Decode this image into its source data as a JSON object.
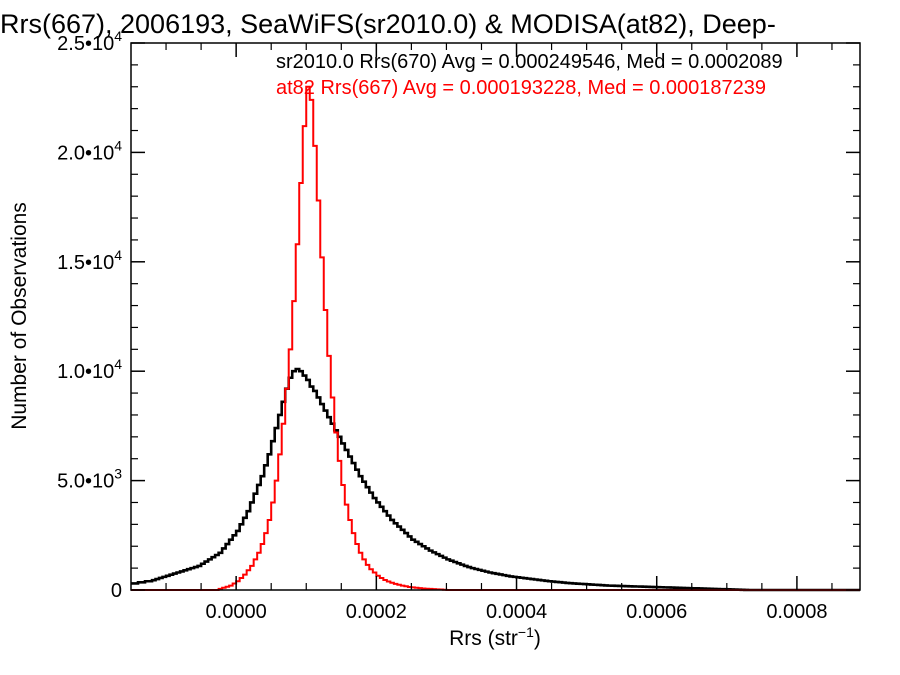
{
  "chart_data": {
    "type": "line",
    "title": "Rrs(667), 2006193, SeaWiFS(sr2010.0) & MODISA(at82), Deep-",
    "xlabel": "Rrs (str",
    "xlabel_sup": "−1",
    "xlabel_end": ")",
    "ylabel": "Number of Observations",
    "xlim": [
      -0.00015,
      0.00089
    ],
    "ylim": [
      0,
      25000
    ],
    "xticks": [
      0.0,
      0.0002,
      0.0004,
      0.0006,
      0.0008
    ],
    "xtick_labels": [
      "0.0000",
      "0.0002",
      "0.0004",
      "0.0006",
      "0.0008"
    ],
    "yticks": [
      0,
      5000,
      10000,
      15000,
      20000,
      25000
    ],
    "ytick_labels": [
      {
        "base": "0",
        "exp": ""
      },
      {
        "base": "5.0•10",
        "exp": "3"
      },
      {
        "base": "1.0•10",
        "exp": "4"
      },
      {
        "base": "1.5•10",
        "exp": "4"
      },
      {
        "base": "2.0•10",
        "exp": "4"
      },
      {
        "base": "2.5•10",
        "exp": "4"
      }
    ],
    "bin_width": 5e-06,
    "grid": false,
    "series": [
      {
        "name": "sr2010.0 Rrs(670)",
        "annotation": "sr2010.0 Rrs(670) Avg = 0.000249546, Med = 0.0002089",
        "color": "#000000",
        "x_start": -0.00015,
        "values": [
          300,
          300,
          350,
          350,
          400,
          400,
          450,
          500,
          550,
          600,
          650,
          700,
          750,
          800,
          850,
          900,
          950,
          1000,
          1050,
          1100,
          1200,
          1300,
          1400,
          1500,
          1600,
          1700,
          1900,
          2100,
          2300,
          2500,
          2700,
          3000,
          3300,
          3600,
          4000,
          4400,
          4800,
          5200,
          5700,
          6200,
          6800,
          7400,
          8000,
          8600,
          9200,
          9700,
          10000,
          10100,
          10000,
          9800,
          9600,
          9300,
          9100,
          8800,
          8500,
          8200,
          7900,
          7600,
          7300,
          7000,
          6700,
          6400,
          6100,
          5800,
          5500,
          5200,
          4950,
          4700,
          4450,
          4200,
          4000,
          3800,
          3600,
          3400,
          3200,
          3050,
          2900,
          2750,
          2600,
          2450,
          2300,
          2200,
          2100,
          2000,
          1900,
          1800,
          1720,
          1640,
          1560,
          1480,
          1400,
          1340,
          1280,
          1220,
          1160,
          1100,
          1050,
          1000,
          960,
          920,
          880,
          840,
          800,
          770,
          740,
          710,
          680,
          650,
          620,
          600,
          580,
          560,
          540,
          520,
          500,
          480,
          460,
          440,
          420,
          400,
          385,
          370,
          355,
          340,
          325,
          310,
          300,
          290,
          280,
          270,
          260,
          250,
          240,
          230,
          220,
          210,
          200,
          195,
          190,
          185,
          180,
          175,
          170,
          165,
          160,
          155,
          150,
          145,
          140,
          135,
          130,
          125,
          120,
          115,
          110,
          105,
          100,
          95,
          90,
          85,
          80,
          75,
          70,
          65,
          60,
          55,
          50,
          45,
          40,
          35,
          30,
          25,
          20,
          15,
          10,
          5,
          0,
          0,
          0,
          0,
          0,
          0,
          0,
          0,
          0,
          0,
          0,
          0,
          0,
          0,
          0,
          0,
          0,
          0,
          0,
          0,
          0,
          0,
          0,
          0,
          0,
          0,
          0,
          0,
          0,
          0,
          0,
          0,
          0,
          0,
          0,
          0,
          0,
          0
        ]
      },
      {
        "name": "at82 Rrs(667)",
        "annotation": "at82 Rrs(667) Avg = 0.000193228, Med = 0.000187239",
        "color": "#ff0000",
        "x_start": -0.00015,
        "values": [
          0,
          0,
          0,
          0,
          0,
          0,
          0,
          0,
          0,
          0,
          0,
          0,
          0,
          0,
          0,
          0,
          0,
          0,
          0,
          0,
          0,
          0,
          0,
          0,
          0,
          50,
          100,
          150,
          200,
          300,
          400,
          550,
          700,
          900,
          1100,
          1400,
          1700,
          2100,
          2600,
          3200,
          4000,
          5000,
          6200,
          7600,
          9200,
          11000,
          13200,
          15800,
          18600,
          21200,
          23000,
          22400,
          20300,
          17800,
          15200,
          12800,
          10700,
          8800,
          7200,
          5900,
          4800,
          3900,
          3200,
          2600,
          2100,
          1700,
          1400,
          1150,
          950,
          800,
          650,
          550,
          460,
          390,
          330,
          280,
          240,
          200,
          170,
          140,
          120,
          100,
          85,
          70,
          60,
          50,
          40,
          30,
          20,
          10,
          0,
          0,
          0,
          0,
          0,
          0,
          0,
          0,
          0,
          0,
          0,
          0,
          0,
          0,
          0,
          0,
          0,
          0,
          0,
          0,
          0,
          0,
          0,
          0,
          0,
          0,
          0,
          0,
          0,
          0,
          0,
          0,
          0,
          0,
          0,
          0,
          0,
          0,
          0,
          0,
          0,
          0,
          0,
          0,
          0,
          0,
          0,
          0,
          0,
          0,
          0,
          0,
          0,
          0,
          0,
          0,
          0,
          0,
          0,
          0,
          0,
          0,
          0,
          0,
          0,
          0,
          0,
          0,
          0,
          0,
          0,
          0,
          0,
          0,
          0,
          0,
          0,
          0,
          0,
          0,
          0,
          0,
          0,
          0,
          0,
          0,
          0,
          0,
          0,
          0,
          0,
          0,
          0,
          0,
          0,
          0,
          0,
          0,
          0,
          0,
          0,
          0,
          0,
          0,
          0,
          0,
          0,
          0,
          0,
          0,
          0,
          0,
          0,
          0,
          0,
          0,
          0,
          0,
          0,
          0
        ]
      }
    ]
  }
}
